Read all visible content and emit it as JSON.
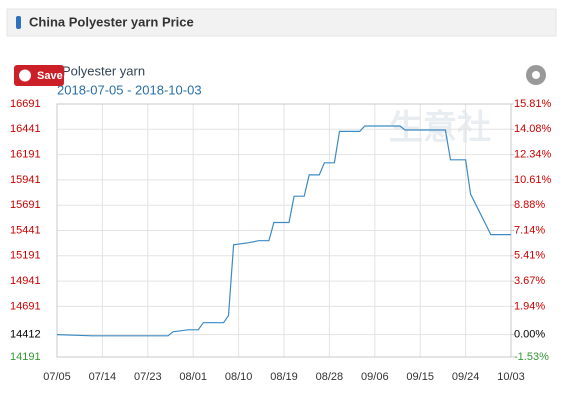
{
  "header": {
    "title": "China Polyester yarn Price"
  },
  "save_button": {
    "label": "Save"
  },
  "watermark": "生意社",
  "chart_data": {
    "type": "line",
    "subtitle": "2018-07-05 - 2018-10-03",
    "x": [
      "07/05",
      "07/12",
      "07/27",
      "07/28",
      "07/31",
      "08/02",
      "08/03",
      "08/07",
      "08/08",
      "08/09",
      "08/12",
      "08/14",
      "08/16",
      "08/17",
      "08/20",
      "08/21",
      "08/23",
      "08/24",
      "08/26",
      "08/27",
      "08/29",
      "08/30",
      "09/03",
      "09/04",
      "09/11",
      "09/12",
      "09/20",
      "09/21",
      "09/24",
      "09/25",
      "09/26",
      "09/28",
      "09/29",
      "10/03"
    ],
    "series": [
      {
        "name": "Polyester yarn",
        "color": "#3d8bc4",
        "values": [
          14412,
          14400,
          14400,
          14440,
          14460,
          14460,
          14530,
          14530,
          14600,
          15300,
          15320,
          15340,
          15340,
          15520,
          15520,
          15780,
          15780,
          15990,
          15990,
          16110,
          16110,
          16420,
          16420,
          16474,
          16474,
          16434,
          16434,
          16140,
          16140,
          15800,
          15700,
          15500,
          15400,
          15400
        ]
      }
    ],
    "xlim": [
      "07/05",
      "10/03"
    ],
    "xticks": [
      "07/05",
      "07/14",
      "07/23",
      "08/01",
      "08/10",
      "08/19",
      "08/28",
      "09/06",
      "09/15",
      "09/24",
      "10/03"
    ],
    "ylim": [
      14191,
      16691
    ],
    "yticks": [
      14191,
      14412,
      14691,
      14941,
      15191,
      15441,
      15691,
      15941,
      16191,
      16441,
      16691
    ],
    "y2lim": [
      -1.53,
      15.81
    ],
    "y2ticks": [
      {
        "value": -1.53,
        "label": "-1.53%"
      },
      {
        "value": 0,
        "label": "0.00%"
      },
      {
        "value": 1.94,
        "label": "1.94%"
      },
      {
        "value": 3.67,
        "label": "3.67%"
      },
      {
        "value": 5.41,
        "label": "5.41%"
      },
      {
        "value": 7.14,
        "label": "7.14%"
      },
      {
        "value": 8.88,
        "label": "8.88%"
      },
      {
        "value": 10.61,
        "label": "10.61%"
      },
      {
        "value": 12.34,
        "label": "12.34%"
      },
      {
        "value": 14.08,
        "label": "14.08%"
      },
      {
        "value": 15.81,
        "label": "15.81%"
      }
    ],
    "up_color": "#cc0000",
    "down_color": "#339933",
    "base_color": "#000000",
    "grid": true
  }
}
